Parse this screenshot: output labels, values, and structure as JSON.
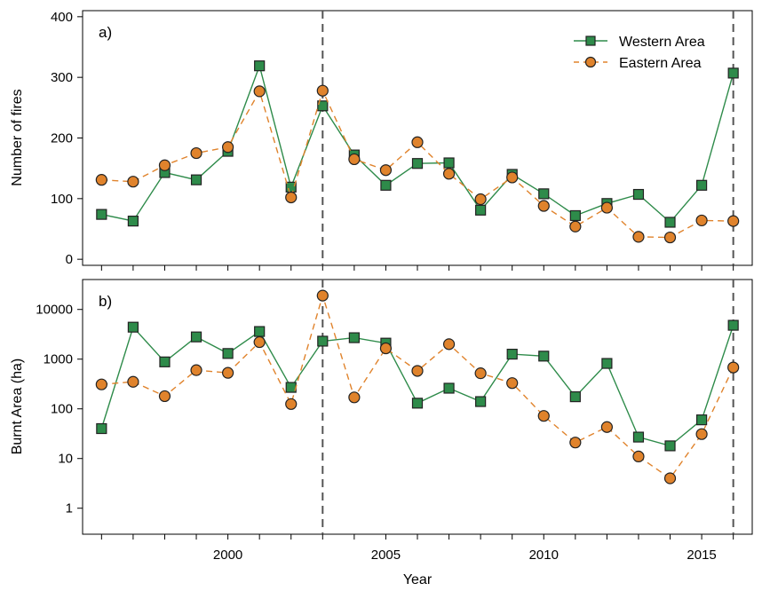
{
  "colors": {
    "western": "#2e8b4a",
    "eastern": "#e0832c",
    "marker_edge": "#222222",
    "reference_line": "#555555"
  },
  "chart_data": [
    {
      "type": "line",
      "panel_label": "a)",
      "xlabel": "",
      "ylabel": "Number of fires",
      "x": [
        1996,
        1997,
        1998,
        1999,
        2000,
        2001,
        2002,
        2003,
        2004,
        2005,
        2006,
        2007,
        2008,
        2009,
        2010,
        2011,
        2012,
        2013,
        2014,
        2015,
        2016
      ],
      "xlim": [
        1995.4,
        2016.6
      ],
      "ylim": [
        -10,
        410
      ],
      "yscale": "linear",
      "yticks": [
        0,
        100,
        200,
        300,
        400
      ],
      "ytick_labels": [
        "0",
        "100",
        "200",
        "300",
        "400"
      ],
      "vlines": [
        2003,
        2016
      ],
      "legend": {
        "position": "top-right",
        "entries": [
          "Western Area",
          "Eastern Area"
        ]
      },
      "series": [
        {
          "name": "Western Area",
          "marker": "square",
          "line": "solid",
          "values": [
            74,
            63,
            143,
            131,
            178,
            319,
            119,
            253,
            172,
            122,
            158,
            159,
            81,
            140,
            108,
            72,
            92,
            107,
            61,
            122,
            307
          ]
        },
        {
          "name": "Eastern Area",
          "marker": "circle",
          "line": "dashed",
          "values": [
            131,
            128,
            155,
            175,
            185,
            277,
            102,
            278,
            165,
            147,
            193,
            141,
            99,
            135,
            88,
            54,
            85,
            37,
            36,
            64,
            63
          ]
        }
      ]
    },
    {
      "type": "line",
      "panel_label": "b)",
      "xlabel": "Year",
      "ylabel": "Burnt Area (ha)",
      "x": [
        1996,
        1997,
        1998,
        1999,
        2000,
        2001,
        2002,
        2003,
        2004,
        2005,
        2006,
        2007,
        2008,
        2009,
        2010,
        2011,
        2012,
        2013,
        2014,
        2015,
        2016
      ],
      "xlim": [
        1995.4,
        2016.6
      ],
      "xticks": [
        2000,
        2005,
        2010,
        2015
      ],
      "xtick_labels": [
        "2000",
        "2005",
        "2010",
        "2015"
      ],
      "ylim": [
        0.3,
        40000
      ],
      "yscale": "log",
      "yticks": [
        1,
        10,
        100,
        1000,
        10000
      ],
      "ytick_labels": [
        "1",
        "10",
        "100",
        "1000",
        "10000"
      ],
      "vlines": [
        2003,
        2016
      ],
      "series": [
        {
          "name": "Western Area",
          "marker": "square",
          "line": "solid",
          "values": [
            40,
            4400,
            880,
            2800,
            1300,
            3600,
            270,
            2300,
            2700,
            2100,
            130,
            260,
            140,
            1260,
            1150,
            175,
            820,
            27,
            18,
            60,
            4800
          ]
        },
        {
          "name": "Eastern Area",
          "marker": "circle",
          "line": "dashed",
          "values": [
            310,
            350,
            180,
            600,
            530,
            2200,
            125,
            19000,
            170,
            1650,
            580,
            2000,
            520,
            330,
            72,
            21,
            43,
            11,
            4,
            31,
            680
          ]
        }
      ]
    }
  ]
}
